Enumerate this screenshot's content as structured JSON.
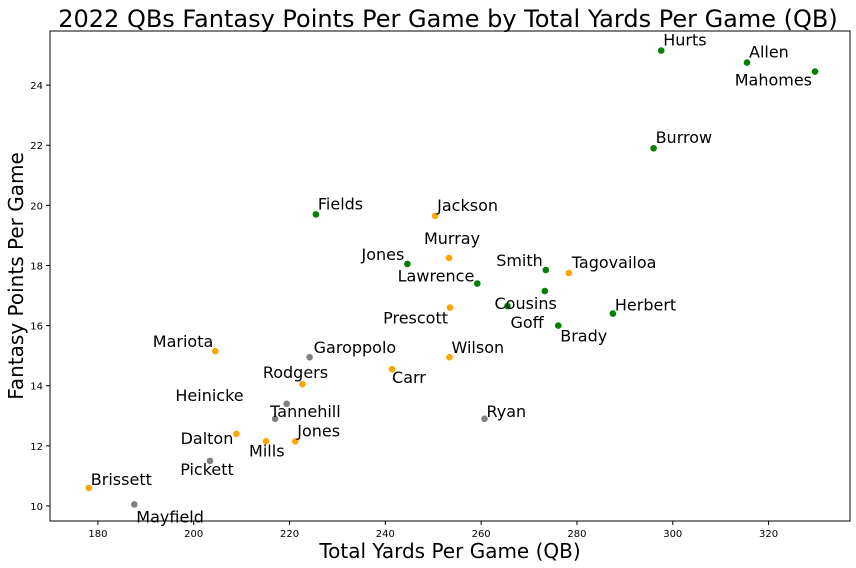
{
  "chart_data": {
    "type": "scatter",
    "title": "2022 QBs Fantasy Points Per Game by Total Yards Per Game (QB)",
    "xlabel": "Total Yards Per Game (QB)",
    "ylabel": "Fantasy Points Per Game",
    "xlim": [
      170,
      337
    ],
    "ylim": [
      9.5,
      25.8
    ],
    "xticks": [
      180,
      200,
      220,
      240,
      260,
      280,
      300,
      320
    ],
    "yticks": [
      10,
      12,
      14,
      16,
      18,
      20,
      22,
      24
    ],
    "grid": false,
    "colors": {
      "green": "#008000",
      "orange": "#ffa500",
      "gray": "#808080"
    },
    "points": [
      {
        "name": "Hurts",
        "x": 297.6,
        "y": 25.15,
        "color": "green"
      },
      {
        "name": "Allen",
        "x": 315.5,
        "y": 24.75,
        "color": "green"
      },
      {
        "name": "Mahomes",
        "x": 329.7,
        "y": 24.45,
        "color": "green"
      },
      {
        "name": "Burrow",
        "x": 296.0,
        "y": 21.9,
        "color": "green"
      },
      {
        "name": "Fields",
        "x": 225.5,
        "y": 19.7,
        "color": "green"
      },
      {
        "name": "Jackson",
        "x": 250.4,
        "y": 19.65,
        "color": "orange"
      },
      {
        "name": "Murray",
        "x": 253.3,
        "y": 18.25,
        "color": "orange"
      },
      {
        "name": "Jones",
        "x": 244.6,
        "y": 18.05,
        "color": "green"
      },
      {
        "name": "Smith",
        "x": 273.5,
        "y": 17.85,
        "color": "green"
      },
      {
        "name": "Tagovailoa",
        "x": 278.3,
        "y": 17.75,
        "color": "orange"
      },
      {
        "name": "Lawrence",
        "x": 259.2,
        "y": 17.4,
        "color": "green"
      },
      {
        "name": "Cousins",
        "x": 273.3,
        "y": 17.15,
        "color": "green"
      },
      {
        "name": "Goff",
        "x": 265.5,
        "y": 16.65,
        "color": "green"
      },
      {
        "name": "Prescott",
        "x": 253.5,
        "y": 16.6,
        "color": "orange"
      },
      {
        "name": "Herbert",
        "x": 287.5,
        "y": 16.4,
        "color": "green"
      },
      {
        "name": "Brady",
        "x": 276.1,
        "y": 16.0,
        "color": "green"
      },
      {
        "name": "Mariota",
        "x": 204.5,
        "y": 15.15,
        "color": "orange"
      },
      {
        "name": "Garoppolo",
        "x": 224.2,
        "y": 14.95,
        "color": "gray"
      },
      {
        "name": "Wilson",
        "x": 253.4,
        "y": 14.95,
        "color": "orange"
      },
      {
        "name": "Carr",
        "x": 241.4,
        "y": 14.55,
        "color": "orange"
      },
      {
        "name": "Rodgers",
        "x": 222.7,
        "y": 14.05,
        "color": "orange"
      },
      {
        "name": "Heinicke",
        "x": 219.4,
        "y": 13.4,
        "color": "gray"
      },
      {
        "name": "Tannehill",
        "x": 217.0,
        "y": 12.9,
        "color": "gray"
      },
      {
        "name": "Ryan",
        "x": 260.7,
        "y": 12.9,
        "color": "gray"
      },
      {
        "name": "Dalton",
        "x": 208.9,
        "y": 12.4,
        "color": "orange"
      },
      {
        "name": "Mills",
        "x": 215.1,
        "y": 12.15,
        "color": "orange"
      },
      {
        "name": "Jones",
        "x": 221.2,
        "y": 12.15,
        "color": "orange"
      },
      {
        "name": "Pickett",
        "x": 203.4,
        "y": 11.5,
        "color": "gray"
      },
      {
        "name": "Brissett",
        "x": 178.1,
        "y": 10.6,
        "color": "orange"
      },
      {
        "name": "Mayfield",
        "x": 187.6,
        "y": 10.05,
        "color": "gray"
      }
    ]
  }
}
